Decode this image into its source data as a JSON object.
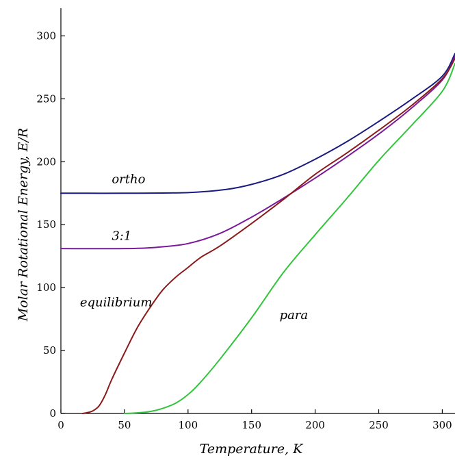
{
  "chart_data": {
    "type": "line",
    "xlabel": "Temperature, K",
    "ylabel": "Molar Rotational Energy, E/R",
    "xlim": [
      0,
      310
    ],
    "ylim": [
      0,
      322
    ],
    "xticks": [
      0,
      50,
      100,
      150,
      200,
      250,
      300
    ],
    "yticks": [
      0,
      50,
      100,
      150,
      200,
      250,
      300
    ],
    "grid": false,
    "legend": "none",
    "series": [
      {
        "name": "ortho",
        "color": "#1a1a80",
        "label_at": [
          40,
          183
        ],
        "points": [
          [
            0,
            175
          ],
          [
            50,
            175
          ],
          [
            100,
            175.5
          ],
          [
            130,
            178
          ],
          [
            150,
            182
          ],
          [
            175,
            190
          ],
          [
            200,
            202
          ],
          [
            225,
            216
          ],
          [
            250,
            232
          ],
          [
            275,
            249
          ],
          [
            300,
            268
          ],
          [
            310,
            286
          ]
        ]
      },
      {
        "name": "3:1",
        "color": "#7a1a9a",
        "label_at": [
          40,
          138
        ],
        "points": [
          [
            0,
            131
          ],
          [
            50,
            131
          ],
          [
            75,
            132
          ],
          [
            100,
            135
          ],
          [
            125,
            143
          ],
          [
            150,
            156
          ],
          [
            175,
            171
          ],
          [
            200,
            187
          ],
          [
            225,
            204
          ],
          [
            250,
            222
          ],
          [
            275,
            242
          ],
          [
            300,
            265
          ],
          [
            310,
            284
          ]
        ]
      },
      {
        "name": "equilibrium",
        "color": "#8b1a1a",
        "label_at": [
          15,
          85
        ],
        "points": [
          [
            17,
            0
          ],
          [
            20,
            0.5
          ],
          [
            25,
            2
          ],
          [
            30,
            6
          ],
          [
            35,
            15
          ],
          [
            40,
            27
          ],
          [
            50,
            48
          ],
          [
            60,
            68
          ],
          [
            70,
            84
          ],
          [
            80,
            98
          ],
          [
            90,
            108
          ],
          [
            100,
            116
          ],
          [
            110,
            124
          ],
          [
            125,
            133
          ],
          [
            150,
            151
          ],
          [
            175,
            170
          ],
          [
            200,
            190
          ],
          [
            225,
            207
          ],
          [
            250,
            225
          ],
          [
            275,
            244
          ],
          [
            300,
            266
          ],
          [
            310,
            282
          ]
        ]
      },
      {
        "name": "para",
        "color": "#33c43d",
        "label_at": [
          172,
          75
        ],
        "points": [
          [
            50,
            0
          ],
          [
            60,
            0.5
          ],
          [
            70,
            1.5
          ],
          [
            80,
            4
          ],
          [
            90,
            8
          ],
          [
            100,
            15
          ],
          [
            110,
            25
          ],
          [
            125,
            43
          ],
          [
            150,
            76
          ],
          [
            175,
            112
          ],
          [
            200,
            142
          ],
          [
            225,
            171
          ],
          [
            250,
            201
          ],
          [
            275,
            228
          ],
          [
            300,
            256
          ],
          [
            310,
            278
          ]
        ]
      }
    ]
  }
}
